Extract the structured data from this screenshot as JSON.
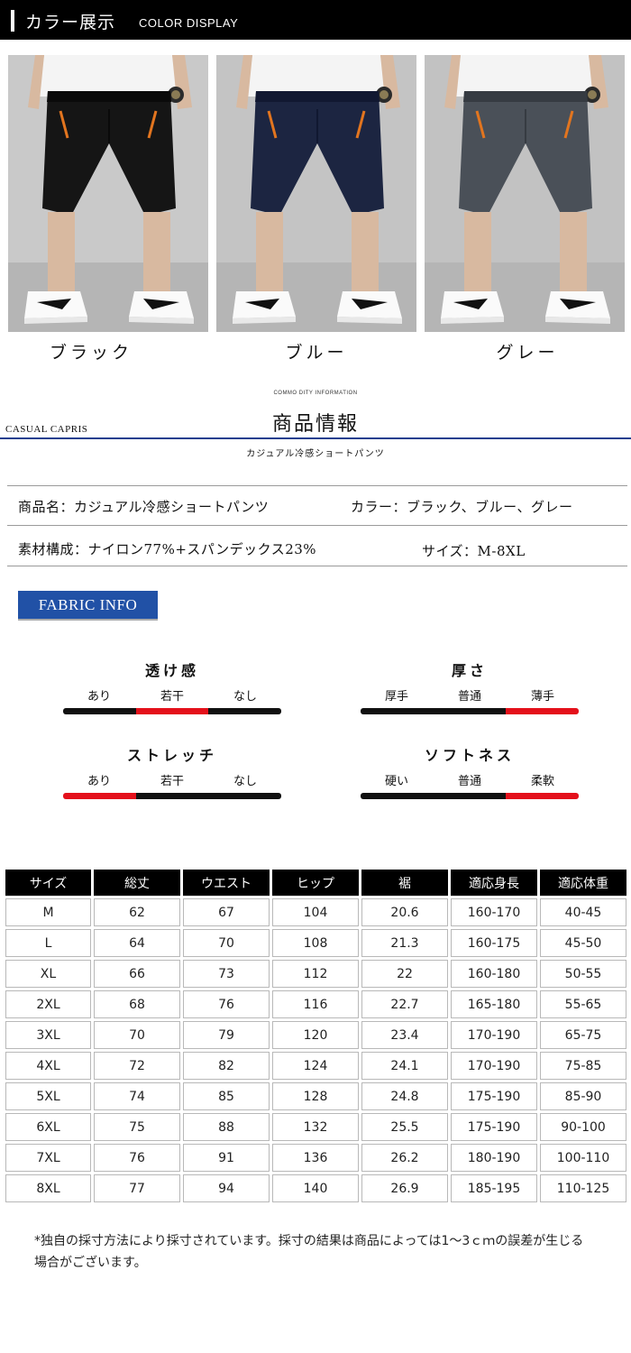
{
  "header": {
    "title_jp": "カラー展示",
    "title_en": "COLOR DISPLAY"
  },
  "colors": [
    {
      "label": "ブラック",
      "pants": "#151515",
      "pants_dark": "#0a0a0a",
      "bg": "#c9c9c9"
    },
    {
      "label": "ブルー",
      "pants": "#1c2541",
      "pants_dark": "#111831",
      "bg": "#c4c4c4"
    },
    {
      "label": "グレー",
      "pants": "#4a5058",
      "pants_dark": "#363b42",
      "bg": "#c2c2c2"
    }
  ],
  "product_info": {
    "small_heading": "COMMO DITY INFORMATION",
    "title": "商品情報",
    "left_label": "CASUAL CAPRIS",
    "subtitle": "カジュアル冷感ショートパンツ",
    "name": "商品名：カジュアル冷感ショートパンツ",
    "color": "カラー：ブラック、ブルー、グレー",
    "material": "素材構成：ナイロン77%+スパンデックス23%",
    "size": "サイズ：M-8XL"
  },
  "fabric": {
    "badge": "FABRIC INFO",
    "scales": [
      {
        "title": "透け感",
        "labels": [
          "あり",
          "若干",
          "なし"
        ],
        "active": 1
      },
      {
        "title": "厚さ",
        "labels": [
          "厚手",
          "普通",
          "薄手"
        ],
        "active": 2
      },
      {
        "title": "ストレッチ",
        "labels": [
          "あり",
          "若干",
          "なし"
        ],
        "active": 0
      },
      {
        "title": "ソフトネス",
        "labels": [
          "硬い",
          "普通",
          "柔軟"
        ],
        "active": 2
      }
    ]
  },
  "size_table": {
    "headers": [
      "サイズ",
      "総丈",
      "ウエスト",
      "ヒップ",
      "裾",
      "適応身長",
      "適応体重"
    ],
    "rows": [
      [
        "M",
        "62",
        "67",
        "104",
        "20.6",
        "160-170",
        "40-45"
      ],
      [
        "L",
        "64",
        "70",
        "108",
        "21.3",
        "160-175",
        "45-50"
      ],
      [
        "XL",
        "66",
        "73",
        "112",
        "22",
        "160-180",
        "50-55"
      ],
      [
        "2XL",
        "68",
        "76",
        "116",
        "22.7",
        "165-180",
        "55-65"
      ],
      [
        "3XL",
        "70",
        "79",
        "120",
        "23.4",
        "170-190",
        "65-75"
      ],
      [
        "4XL",
        "72",
        "82",
        "124",
        "24.1",
        "170-190",
        "75-85"
      ],
      [
        "5XL",
        "74",
        "85",
        "128",
        "24.8",
        "175-190",
        "85-90"
      ],
      [
        "6XL",
        "75",
        "88",
        "132",
        "25.5",
        "175-190",
        "90-100"
      ],
      [
        "7XL",
        "76",
        "91",
        "136",
        "26.2",
        "180-190",
        "100-110"
      ],
      [
        "8XL",
        "77",
        "94",
        "140",
        "26.9",
        "185-195",
        "110-125"
      ]
    ]
  },
  "note": "*独自の採寸方法により採寸されています。採寸の結果は商品によっては1〜3ｃｍの誤差が生じる場合がございます。"
}
